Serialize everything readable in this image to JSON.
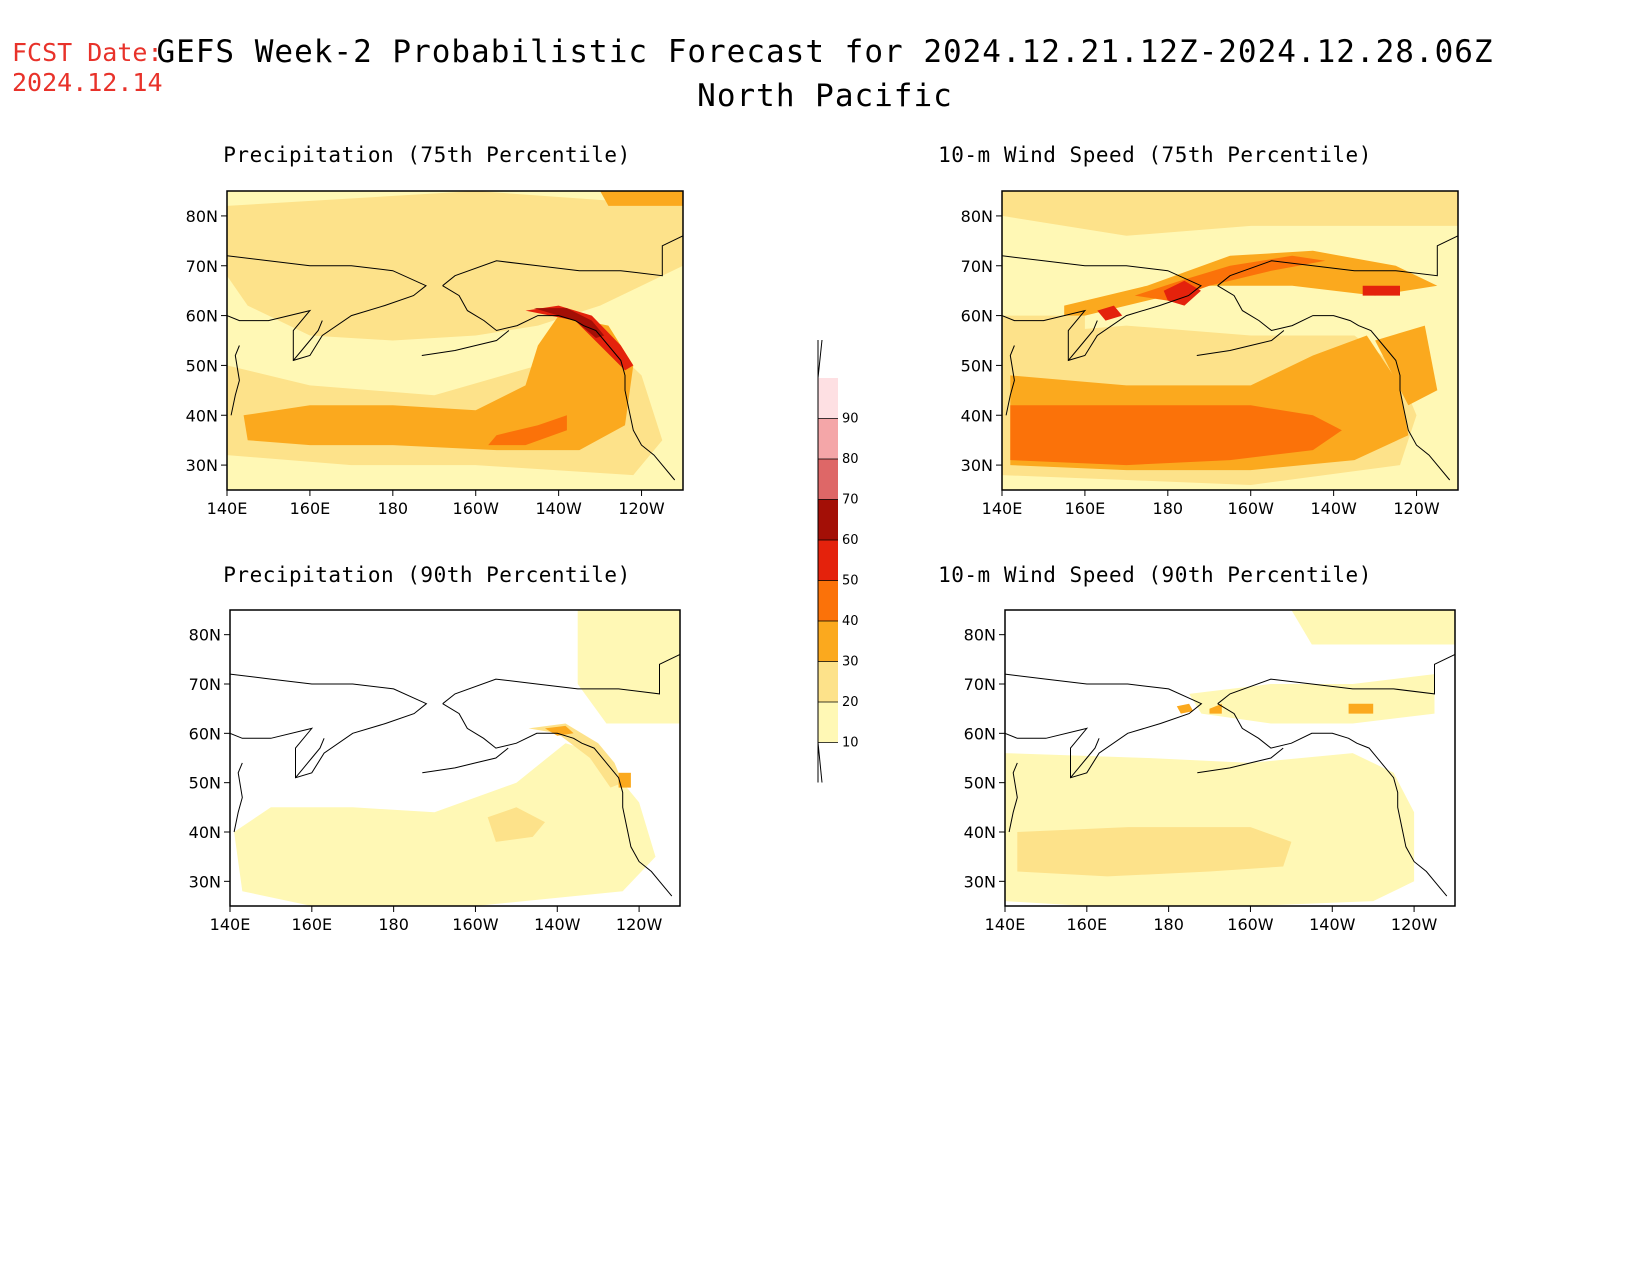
{
  "fcst_date": {
    "label": "FCST Date:",
    "value": "2024.12.14"
  },
  "title": {
    "line1": "GEFS Week-2 Probabilistic Forecast for 2024.12.21.12Z-2024.12.28.06Z",
    "line2": "North Pacific"
  },
  "colors": {
    "c10": "#fff8b5",
    "c20": "#fde28a",
    "c30": "#fba91e",
    "c40": "#fb7209",
    "c50": "#e4220c",
    "c60": "#a30f06",
    "c70": "#de6767",
    "c80": "#f4a6a8",
    "c90": "#fee0e3"
  },
  "colorbar": {
    "ticks": [
      "10",
      "20",
      "30",
      "40",
      "50",
      "60",
      "70",
      "80",
      "90"
    ]
  },
  "axes": {
    "lat_labels": [
      "30N",
      "40N",
      "50N",
      "60N",
      "70N",
      "80N"
    ],
    "lon_labels": [
      "140E",
      "160E",
      "180",
      "160W",
      "140W",
      "120W"
    ]
  },
  "panels": [
    {
      "id": "precip-75",
      "title": "Precipitation (75th Percentile)",
      "variable": "precipitation",
      "percentile": 75
    },
    {
      "id": "wind-75",
      "title": "10-m Wind Speed (75th Percentile)",
      "variable": "10-m wind speed",
      "percentile": 75
    },
    {
      "id": "precip-90",
      "title": "Precipitation (90th Percentile)",
      "variable": "precipitation",
      "percentile": 90
    },
    {
      "id": "wind-90",
      "title": "10-m Wind Speed (90th Percentile)",
      "variable": "10-m wind speed",
      "percentile": 90
    }
  ]
}
